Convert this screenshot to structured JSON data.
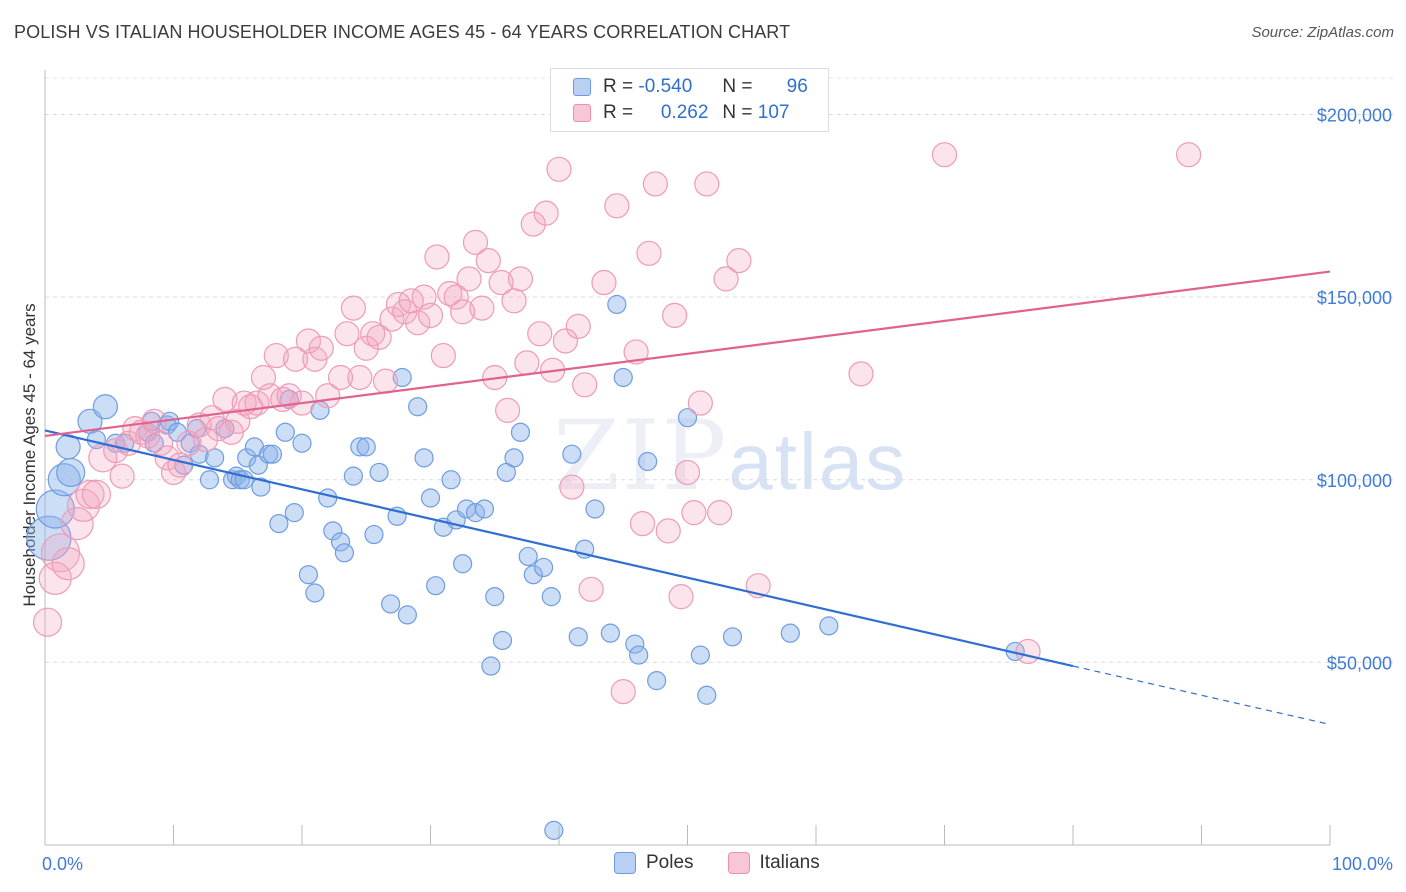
{
  "title": "POLISH VS ITALIAN HOUSEHOLDER INCOME AGES 45 - 64 YEARS CORRELATION CHART",
  "source": "Source: ZipAtlas.com",
  "watermark": {
    "zip": "ZIP",
    "atlas": "atlas"
  },
  "legend": {
    "rows": [
      {
        "r_label": "R =",
        "r_value": "-0.540",
        "n_label": "N =",
        "n_value": "96"
      },
      {
        "r_label": "R =",
        "r_value": "0.262",
        "n_label": "N =",
        "n_value": "107"
      }
    ]
  },
  "bottom_legend": {
    "poles": "Poles",
    "italians": "Italians"
  },
  "chart_data": {
    "type": "scatter",
    "title": "POLISH VS ITALIAN HOUSEHOLDER INCOME AGES 45 - 64 YEARS CORRELATION CHART",
    "xlabel": "",
    "ylabel": "Householder Income Ages 45 - 64 years",
    "xlim": [
      0,
      100
    ],
    "ylim": [
      0,
      210000
    ],
    "x_tick_labels": [
      "0.0%",
      "100.0%"
    ],
    "y_ticks": [
      50000,
      100000,
      150000,
      200000
    ],
    "y_tick_labels": [
      "$50,000",
      "$100,000",
      "$150,000",
      "$200,000"
    ],
    "grid": true,
    "colors": {
      "poles": "#8fb4ec",
      "poles_line": "#2f6fd0",
      "italians": "#f2a7c0",
      "italians_line": "#e0628e"
    },
    "series": [
      {
        "name": "Poles",
        "trend": {
          "x": [
            0,
            80
          ],
          "y": [
            113500,
            49000
          ],
          "dashed_to": [
            100,
            33000
          ]
        },
        "points": [
          [
            0.3,
            84000,
            5
          ],
          [
            0.8,
            92000,
            4
          ],
          [
            1.5,
            100000,
            3
          ],
          [
            2.0,
            102000,
            2
          ],
          [
            1.8,
            109000,
            1
          ],
          [
            3.5,
            116000,
            1
          ],
          [
            4.7,
            120000,
            1
          ],
          [
            4.0,
            111000,
            0
          ],
          [
            5.5,
            110000,
            0
          ],
          [
            6.2,
            110000,
            0
          ],
          [
            8.0,
            113000,
            0
          ],
          [
            8.5,
            110000,
            0
          ],
          [
            8.3,
            116000,
            0
          ],
          [
            9.5,
            115000,
            0
          ],
          [
            9.7,
            116000,
            0
          ],
          [
            10.3,
            113000,
            0
          ],
          [
            10.8,
            104000,
            0
          ],
          [
            11.3,
            110000,
            0
          ],
          [
            11.8,
            114000,
            0
          ],
          [
            12.0,
            107000,
            0
          ],
          [
            12.8,
            100000,
            0
          ],
          [
            13.2,
            106000,
            0
          ],
          [
            14.0,
            114000,
            0
          ],
          [
            14.6,
            100000,
            0
          ],
          [
            14.9,
            101000,
            0
          ],
          [
            15.2,
            100000,
            0
          ],
          [
            15.5,
            100000,
            0
          ],
          [
            15.7,
            106000,
            0
          ],
          [
            16.3,
            109000,
            0
          ],
          [
            16.6,
            104000,
            0
          ],
          [
            16.8,
            98000,
            0
          ],
          [
            17.4,
            107000,
            0
          ],
          [
            17.7,
            107000,
            0
          ],
          [
            18.2,
            88000,
            0
          ],
          [
            18.7,
            113000,
            0
          ],
          [
            19.0,
            122000,
            0
          ],
          [
            19.4,
            91000,
            0
          ],
          [
            20.0,
            110000,
            0
          ],
          [
            20.5,
            74000,
            0
          ],
          [
            21.0,
            69000,
            0
          ],
          [
            21.4,
            119000,
            0
          ],
          [
            22.0,
            95000,
            0
          ],
          [
            22.4,
            86000,
            0
          ],
          [
            23.0,
            83000,
            0
          ],
          [
            23.3,
            80000,
            0
          ],
          [
            24.0,
            101000,
            0
          ],
          [
            24.5,
            109000,
            0
          ],
          [
            25.0,
            109000,
            0
          ],
          [
            25.6,
            85000,
            0
          ],
          [
            26.0,
            102000,
            0
          ],
          [
            26.9,
            66000,
            0
          ],
          [
            27.4,
            90000,
            0
          ],
          [
            27.8,
            128000,
            0
          ],
          [
            28.2,
            63000,
            0
          ],
          [
            29.0,
            120000,
            0
          ],
          [
            29.5,
            106000,
            0
          ],
          [
            30.0,
            95000,
            0
          ],
          [
            30.4,
            71000,
            0
          ],
          [
            31.0,
            87000,
            0
          ],
          [
            31.6,
            100000,
            0
          ],
          [
            32.0,
            89000,
            0
          ],
          [
            32.5,
            77000,
            0
          ],
          [
            32.8,
            92000,
            0
          ],
          [
            33.5,
            91000,
            0
          ],
          [
            34.2,
            92000,
            0
          ],
          [
            34.7,
            49000,
            0
          ],
          [
            35.0,
            68000,
            0
          ],
          [
            35.6,
            56000,
            0
          ],
          [
            35.9,
            102000,
            0
          ],
          [
            36.5,
            106000,
            0
          ],
          [
            37.0,
            113000,
            0
          ],
          [
            37.6,
            79000,
            0
          ],
          [
            38.0,
            74000,
            0
          ],
          [
            38.8,
            76000,
            0
          ],
          [
            39.4,
            68000,
            0
          ],
          [
            39.6,
            4000,
            0
          ],
          [
            41.0,
            107000,
            0
          ],
          [
            41.5,
            57000,
            0
          ],
          [
            42.0,
            81000,
            0
          ],
          [
            42.8,
            92000,
            0
          ],
          [
            44.0,
            58000,
            0
          ],
          [
            44.5,
            148000,
            0
          ],
          [
            45.0,
            128000,
            0
          ],
          [
            45.9,
            55000,
            0
          ],
          [
            46.2,
            52000,
            0
          ],
          [
            46.9,
            105000,
            0
          ],
          [
            47.6,
            45000,
            0
          ],
          [
            50.0,
            117000,
            0
          ],
          [
            51.0,
            52000,
            0
          ],
          [
            51.5,
            41000,
            0
          ],
          [
            53.5,
            57000,
            0
          ],
          [
            58.0,
            58000,
            0
          ],
          [
            61.0,
            60000,
            0
          ],
          [
            75.5,
            53000,
            0
          ]
        ]
      },
      {
        "name": "Italians",
        "trend": {
          "x": [
            0,
            100
          ],
          "y": [
            112000,
            157000
          ]
        },
        "points": [
          [
            0.2,
            61000,
            2
          ],
          [
            0.8,
            73000,
            3
          ],
          [
            1.2,
            80000,
            4
          ],
          [
            1.8,
            77000,
            3
          ],
          [
            2.5,
            88000,
            3
          ],
          [
            3.0,
            93000,
            3
          ],
          [
            3.5,
            96000,
            2
          ],
          [
            4.0,
            96000,
            2
          ],
          [
            4.5,
            106000,
            2
          ],
          [
            5.5,
            108000,
            1
          ],
          [
            6.0,
            101000,
            1
          ],
          [
            6.5,
            110000,
            1
          ],
          [
            7.0,
            114000,
            1
          ],
          [
            7.5,
            113000,
            1
          ],
          [
            8.0,
            112000,
            1
          ],
          [
            8.5,
            116000,
            1
          ],
          [
            9.0,
            110000,
            1
          ],
          [
            9.5,
            106000,
            1
          ],
          [
            10.0,
            102000,
            1
          ],
          [
            10.5,
            104000,
            1
          ],
          [
            11.2,
            110000,
            1
          ],
          [
            12.0,
            115000,
            1
          ],
          [
            12.5,
            111000,
            1
          ],
          [
            13.0,
            117000,
            1
          ],
          [
            13.5,
            114000,
            1
          ],
          [
            14.0,
            122000,
            1
          ],
          [
            14.5,
            113000,
            1
          ],
          [
            15.0,
            116000,
            1
          ],
          [
            15.5,
            121000,
            1
          ],
          [
            16.0,
            120000,
            1
          ],
          [
            16.5,
            121000,
            1
          ],
          [
            17.0,
            128000,
            1
          ],
          [
            17.5,
            123000,
            1
          ],
          [
            18.0,
            134000,
            1
          ],
          [
            18.5,
            122000,
            1
          ],
          [
            19.0,
            123000,
            1
          ],
          [
            19.5,
            133000,
            1
          ],
          [
            20.0,
            121000,
            1
          ],
          [
            20.5,
            138000,
            1
          ],
          [
            21.0,
            133000,
            1
          ],
          [
            21.5,
            136000,
            1
          ],
          [
            22.0,
            123000,
            1
          ],
          [
            23.0,
            128000,
            1
          ],
          [
            23.5,
            140000,
            1
          ],
          [
            24.0,
            147000,
            1
          ],
          [
            24.5,
            128000,
            1
          ],
          [
            25.0,
            136000,
            1
          ],
          [
            25.5,
            140000,
            1
          ],
          [
            26.0,
            139000,
            1
          ],
          [
            26.5,
            127000,
            1
          ],
          [
            27.0,
            144000,
            1
          ],
          [
            27.5,
            148000,
            1
          ],
          [
            28.0,
            146000,
            1
          ],
          [
            28.5,
            149000,
            1
          ],
          [
            29.0,
            143000,
            1
          ],
          [
            29.5,
            150000,
            1
          ],
          [
            30.0,
            145000,
            1
          ],
          [
            30.5,
            161000,
            1
          ],
          [
            31.0,
            134000,
            1
          ],
          [
            31.5,
            151000,
            1
          ],
          [
            32.0,
            150000,
            1
          ],
          [
            32.5,
            146000,
            1
          ],
          [
            33.0,
            155000,
            1
          ],
          [
            33.5,
            165000,
            1
          ],
          [
            34.0,
            147000,
            1
          ],
          [
            34.5,
            160000,
            1
          ],
          [
            35.0,
            128000,
            1
          ],
          [
            35.5,
            154000,
            1
          ],
          [
            36.0,
            119000,
            1
          ],
          [
            36.5,
            149000,
            1
          ],
          [
            37.0,
            155000,
            1
          ],
          [
            37.5,
            132000,
            1
          ],
          [
            38.0,
            170000,
            1
          ],
          [
            38.5,
            140000,
            1
          ],
          [
            39.0,
            173000,
            1
          ],
          [
            39.5,
            130000,
            1
          ],
          [
            40.0,
            185000,
            1
          ],
          [
            40.5,
            138000,
            1
          ],
          [
            41.0,
            98000,
            1
          ],
          [
            41.5,
            142000,
            1
          ],
          [
            42.0,
            126000,
            1
          ],
          [
            42.5,
            70000,
            1
          ],
          [
            43.5,
            154000,
            1
          ],
          [
            44.5,
            175000,
            1
          ],
          [
            45.0,
            42000,
            1
          ],
          [
            46.0,
            135000,
            1
          ],
          [
            46.5,
            88000,
            1
          ],
          [
            47.0,
            162000,
            1
          ],
          [
            47.5,
            181000,
            1
          ],
          [
            48.5,
            86000,
            1
          ],
          [
            49.0,
            145000,
            1
          ],
          [
            49.5,
            68000,
            1
          ],
          [
            50.0,
            102000,
            1
          ],
          [
            50.5,
            91000,
            1
          ],
          [
            51.0,
            121000,
            1
          ],
          [
            51.5,
            181000,
            1
          ],
          [
            52.5,
            91000,
            1
          ],
          [
            53.0,
            155000,
            1
          ],
          [
            54.0,
            160000,
            1
          ],
          [
            55.5,
            71000,
            1
          ],
          [
            63.5,
            129000,
            1
          ],
          [
            70.0,
            189000,
            1
          ],
          [
            76.5,
            53000,
            1
          ],
          [
            89.0,
            189000,
            1
          ]
        ]
      }
    ]
  }
}
